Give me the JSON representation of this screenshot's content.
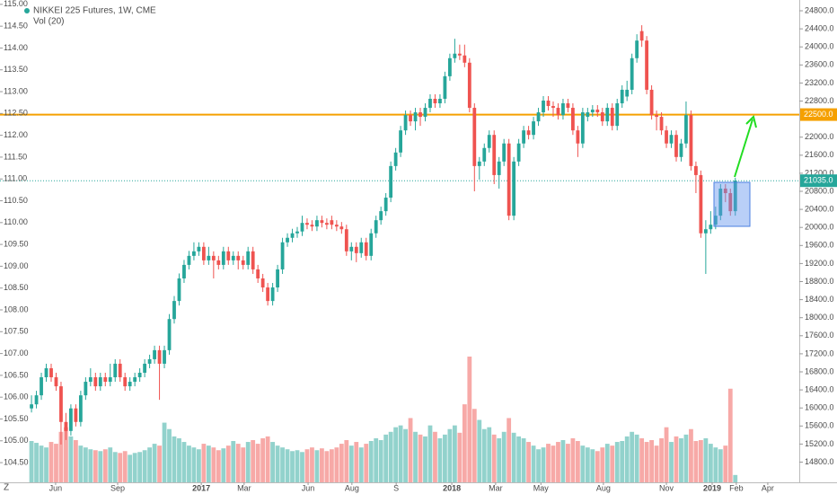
{
  "chart_data": {
    "type": "candlestick",
    "title": "NIKKEI 225 Futures, 1W, CME",
    "volume_title": "Vol (20)",
    "corner_label": "Z",
    "up_color": "#26a69a",
    "down_color": "#ef5350",
    "volume_up_color": "rgba(38,166,154,0.5)",
    "volume_down_color": "rgba(239,83,80,0.5)",
    "open": [
      15990,
      16080,
      16280,
      16680,
      16880,
      16680,
      16480,
      15690,
      15490,
      15990,
      15690,
      16280,
      16580,
      16680,
      16480,
      16680,
      16580,
      16680,
      16980,
      16680,
      16480,
      16580,
      16680,
      16780,
      16980,
      17080,
      17280,
      16980,
      17280,
      17970,
      18370,
      18870,
      19170,
      19370,
      19470,
      19570,
      19270,
      19370,
      19270,
      19170,
      19470,
      19270,
      19370,
      19270,
      19170,
      19470,
      19070,
      18870,
      18670,
      18370,
      18670,
      19070,
      19670,
      19770,
      19870,
      19910,
      20100,
      20060,
      20020,
      20160,
      20100,
      20160,
      20060,
      20020,
      19960,
      19470,
      19570,
      19430,
      19670,
      19370,
      19870,
      20160,
      20360,
      20660,
      21360,
      21660,
      22150,
      22490,
      22350,
      22550,
      22450,
      22650,
      22850,
      22750,
      22850,
      23350,
      23750,
      23850,
      23810,
      23650,
      22650,
      21360,
      21460,
      21760,
      22050,
      21160,
      21460,
      21860,
      20260,
      21460,
      21860,
      22150,
      22050,
      22350,
      22550,
      22810,
      22690,
      22650,
      22490,
      22750,
      22650,
      22150,
      21860,
      22450,
      22550,
      22610,
      22550,
      22350,
      22650,
      22250,
      22750,
      22900,
      23050,
      23750,
      24350,
      24140,
      23050,
      22490,
      22450,
      22150,
      21860,
      22050,
      21560,
      21860,
      22490,
      21360,
      21160,
      19870,
      19960,
      20060,
      20260,
      20860,
      20760,
      20360
    ],
    "high": [
      16280,
      16380,
      16780,
      16980,
      16980,
      16780,
      16580,
      15890,
      16080,
      16080,
      16380,
      16680,
      16880,
      16780,
      16780,
      16780,
      16980,
      17080,
      17080,
      16780,
      16680,
      16780,
      16880,
      17080,
      17180,
      17380,
      17380,
      17380,
      18080,
      18480,
      18980,
      19280,
      19480,
      19670,
      19670,
      19670,
      19570,
      19470,
      19370,
      19570,
      19570,
      19470,
      19470,
      19370,
      19570,
      19570,
      19170,
      18970,
      18770,
      18770,
      19170,
      19770,
      19870,
      19970,
      20010,
      20260,
      20200,
      20160,
      20260,
      20260,
      20200,
      20260,
      20160,
      20120,
      20060,
      19670,
      19670,
      19770,
      19770,
      19970,
      20260,
      20460,
      20760,
      21460,
      21760,
      22250,
      22590,
      22590,
      22650,
      22650,
      22750,
      22950,
      22950,
      22950,
      23450,
      23850,
      24180,
      24050,
      24050,
      23750,
      22750,
      21560,
      21860,
      22150,
      22150,
      21560,
      21960,
      21960,
      21560,
      21960,
      22250,
      22250,
      22450,
      22650,
      22910,
      22910,
      22790,
      22750,
      22850,
      22850,
      22750,
      22250,
      22650,
      22650,
      22710,
      22710,
      22650,
      22750,
      22750,
      22850,
      23150,
      23250,
      23850,
      24280,
      24480,
      24240,
      23150,
      22590,
      22550,
      22250,
      22150,
      22150,
      21960,
      22790,
      22590,
      21460,
      21260,
      20160,
      20360,
      20460,
      20960,
      20960,
      20860,
      21100
    ],
    "low": [
      15900,
      15990,
      16180,
      16580,
      16580,
      16380,
      15190,
      15290,
      15390,
      15590,
      15590,
      16180,
      16480,
      16380,
      16380,
      16480,
      16480,
      16580,
      16580,
      16380,
      16380,
      16480,
      16580,
      16680,
      16880,
      16980,
      16180,
      16880,
      17180,
      17870,
      18270,
      18770,
      19070,
      19270,
      19370,
      19170,
      19170,
      18870,
      19070,
      19070,
      19170,
      19170,
      19070,
      19070,
      19070,
      18970,
      18770,
      18570,
      18270,
      18270,
      18570,
      18970,
      19570,
      19670,
      19770,
      19810,
      19960,
      19920,
      19920,
      20000,
      19960,
      19960,
      19920,
      19860,
      19370,
      19270,
      19230,
      19330,
      19270,
      19270,
      19770,
      20060,
      20260,
      20560,
      21260,
      21560,
      22050,
      22250,
      22150,
      22250,
      22350,
      22550,
      22650,
      22650,
      22750,
      23250,
      23650,
      23710,
      23550,
      22550,
      20800,
      21060,
      21360,
      21660,
      20960,
      20860,
      21360,
      20160,
      20160,
      21360,
      21760,
      21950,
      21950,
      22250,
      22450,
      22590,
      22450,
      22390,
      22390,
      22550,
      22050,
      21560,
      21760,
      22350,
      22450,
      22450,
      22250,
      22250,
      22150,
      22150,
      22650,
      22800,
      22950,
      23650,
      24000,
      22950,
      22390,
      22150,
      22050,
      21760,
      21760,
      21460,
      21460,
      21760,
      21260,
      20760,
      19770,
      18970,
      19860,
      19960,
      20160,
      20560,
      20260,
      20260
    ],
    "close": [
      16080,
      16280,
      16680,
      16880,
      16680,
      16480,
      15690,
      15490,
      15990,
      15690,
      16280,
      16580,
      16680,
      16480,
      16680,
      16580,
      16680,
      16980,
      16680,
      16480,
      16580,
      16680,
      16780,
      16980,
      17080,
      17280,
      16980,
      17280,
      17970,
      18370,
      18870,
      19170,
      19370,
      19470,
      19570,
      19270,
      19370,
      19270,
      19170,
      19470,
      19270,
      19370,
      19270,
      19170,
      19470,
      19070,
      18870,
      18670,
      18370,
      18670,
      19070,
      19670,
      19770,
      19870,
      19910,
      20100,
      20060,
      20020,
      20160,
      20100,
      20060,
      20060,
      20020,
      19960,
      19470,
      19570,
      19430,
      19670,
      19370,
      19870,
      20160,
      20360,
      20660,
      21360,
      21660,
      22150,
      22490,
      22350,
      22550,
      22450,
      22650,
      22850,
      22750,
      22850,
      23350,
      23750,
      23850,
      23810,
      23650,
      22650,
      21360,
      21460,
      21760,
      22050,
      21160,
      21460,
      21860,
      20260,
      21460,
      21860,
      22150,
      22050,
      22350,
      22550,
      22810,
      22690,
      22650,
      22490,
      22750,
      22650,
      22150,
      21860,
      22550,
      22550,
      22610,
      22550,
      22350,
      22650,
      22250,
      22750,
      23050,
      23050,
      23750,
      24140,
      24140,
      23050,
      22490,
      22450,
      22150,
      21860,
      22050,
      21560,
      21860,
      22490,
      21360,
      21160,
      19870,
      19960,
      20060,
      20260,
      20860,
      20760,
      20360,
      21035
    ],
    "volume": [
      45,
      43,
      40,
      38,
      44,
      42,
      55,
      60,
      50,
      46,
      40,
      38,
      36,
      35,
      34,
      36,
      38,
      33,
      32,
      34,
      30,
      32,
      33,
      35,
      38,
      42,
      40,
      65,
      58,
      50,
      48,
      44,
      40,
      38,
      36,
      42,
      40,
      38,
      35,
      37,
      40,
      45,
      42,
      38,
      44,
      46,
      42,
      48,
      50,
      44,
      40,
      38,
      36,
      34,
      35,
      33,
      36,
      38,
      35,
      37,
      34,
      36,
      38,
      42,
      46,
      40,
      44,
      38,
      42,
      45,
      48,
      46,
      52,
      55,
      60,
      62,
      58,
      70,
      55,
      52,
      50,
      62,
      55,
      48,
      52,
      58,
      62,
      54,
      85,
      137,
      80,
      68,
      58,
      60,
      52,
      48,
      55,
      70,
      54,
      50,
      48,
      44,
      40,
      36,
      38,
      42,
      40,
      44,
      46,
      42,
      48,
      45,
      40,
      38,
      36,
      34,
      38,
      42,
      40,
      44,
      45,
      50,
      55,
      52,
      48,
      44,
      46,
      40,
      48,
      60,
      44,
      50,
      48,
      52,
      58,
      45,
      46,
      48,
      42,
      38,
      36,
      40,
      102,
      8
    ],
    "xlim": [
      -6.4,
      156
    ],
    "xticks": [
      {
        "value": 4.9,
        "label": "Jun"
      },
      {
        "value": 17.5,
        "label": "Sep"
      },
      {
        "value": 34.5,
        "label": "2017"
      },
      {
        "value": 43.2,
        "label": "Mar"
      },
      {
        "value": 56.2,
        "label": "Jun"
      },
      {
        "value": 65.1,
        "label": "Aug"
      },
      {
        "value": 74.1,
        "label": "S"
      },
      {
        "value": 85.4,
        "label": "2018"
      },
      {
        "value": 94.3,
        "label": "Mar"
      },
      {
        "value": 103.5,
        "label": "May"
      },
      {
        "value": 116.2,
        "label": "Aug"
      },
      {
        "value": 129,
        "label": "Nov"
      },
      {
        "value": 138.3,
        "label": "2019"
      },
      {
        "value": 143.2,
        "label": "Feb"
      },
      {
        "value": 149.6,
        "label": "Apr"
      }
    ],
    "ylim": [
      14392,
      25039
    ],
    "yticks": [
      {
        "value": 24800,
        "label": "24800.0"
      },
      {
        "value": 24400,
        "label": "24400.0"
      },
      {
        "value": 24000,
        "label": "24000.0"
      },
      {
        "value": 23600,
        "label": "23600.0"
      },
      {
        "value": 23200,
        "label": "23200.0"
      },
      {
        "value": 22800,
        "label": "22800.0"
      },
      {
        "value": 22000,
        "label": "22000.0"
      },
      {
        "value": 21600,
        "label": "21600.0"
      },
      {
        "value": 21200,
        "label": "21200.0"
      },
      {
        "value": 20800,
        "label": "20800.0"
      },
      {
        "value": 20400,
        "label": "20400.0"
      },
      {
        "value": 20000,
        "label": "20000.0"
      },
      {
        "value": 19600,
        "label": "19600.0"
      },
      {
        "value": 19200,
        "label": "19200.0"
      },
      {
        "value": 18800,
        "label": "18800.0"
      },
      {
        "value": 18400,
        "label": "18400.0"
      },
      {
        "value": 18000,
        "label": "18000.0"
      },
      {
        "value": 17600,
        "label": "17600.0"
      },
      {
        "value": 17200,
        "label": "17200.0"
      },
      {
        "value": 16800,
        "label": "16800.0"
      },
      {
        "value": 16400,
        "label": "16400.0"
      },
      {
        "value": 16000,
        "label": "16000.0"
      },
      {
        "value": 15600,
        "label": "15600.0"
      },
      {
        "value": 15200,
        "label": "15200.0"
      },
      {
        "value": 14800,
        "label": "14800.0"
      }
    ],
    "y2lim": [
      104.09,
      115.1
    ],
    "y2ticks": [
      {
        "value": 115,
        "label": "115.00"
      },
      {
        "value": 114.5,
        "label": "114.50"
      },
      {
        "value": 114,
        "label": "114.00"
      },
      {
        "value": 113.5,
        "label": "113.50"
      },
      {
        "value": 113,
        "label": "113.00"
      },
      {
        "value": 112.5,
        "label": "112.50"
      },
      {
        "value": 112,
        "label": "112.00"
      },
      {
        "value": 111.5,
        "label": "111.50"
      },
      {
        "value": 111,
        "label": "111.00"
      },
      {
        "value": 110.5,
        "label": "110.50"
      },
      {
        "value": 110,
        "label": "110.00"
      },
      {
        "value": 109.5,
        "label": "109.50"
      },
      {
        "value": 109,
        "label": "109.00"
      },
      {
        "value": 108.5,
        "label": "108.50"
      },
      {
        "value": 108,
        "label": "108.00"
      },
      {
        "value": 107.5,
        "label": "107.50"
      },
      {
        "value": 107,
        "label": "107.00"
      },
      {
        "value": 106.5,
        "label": "106.50"
      },
      {
        "value": 106,
        "label": "106.00"
      },
      {
        "value": 105.5,
        "label": "105.50"
      },
      {
        "value": 105,
        "label": "105.00"
      },
      {
        "value": 104.5,
        "label": "104.50"
      }
    ],
    "hline": {
      "value": 22500,
      "label": "22500.0",
      "color": "#f5a000"
    },
    "last_price": {
      "value": 21035,
      "label": "21035.0",
      "color": "#26a69a"
    },
    "grid": false
  }
}
